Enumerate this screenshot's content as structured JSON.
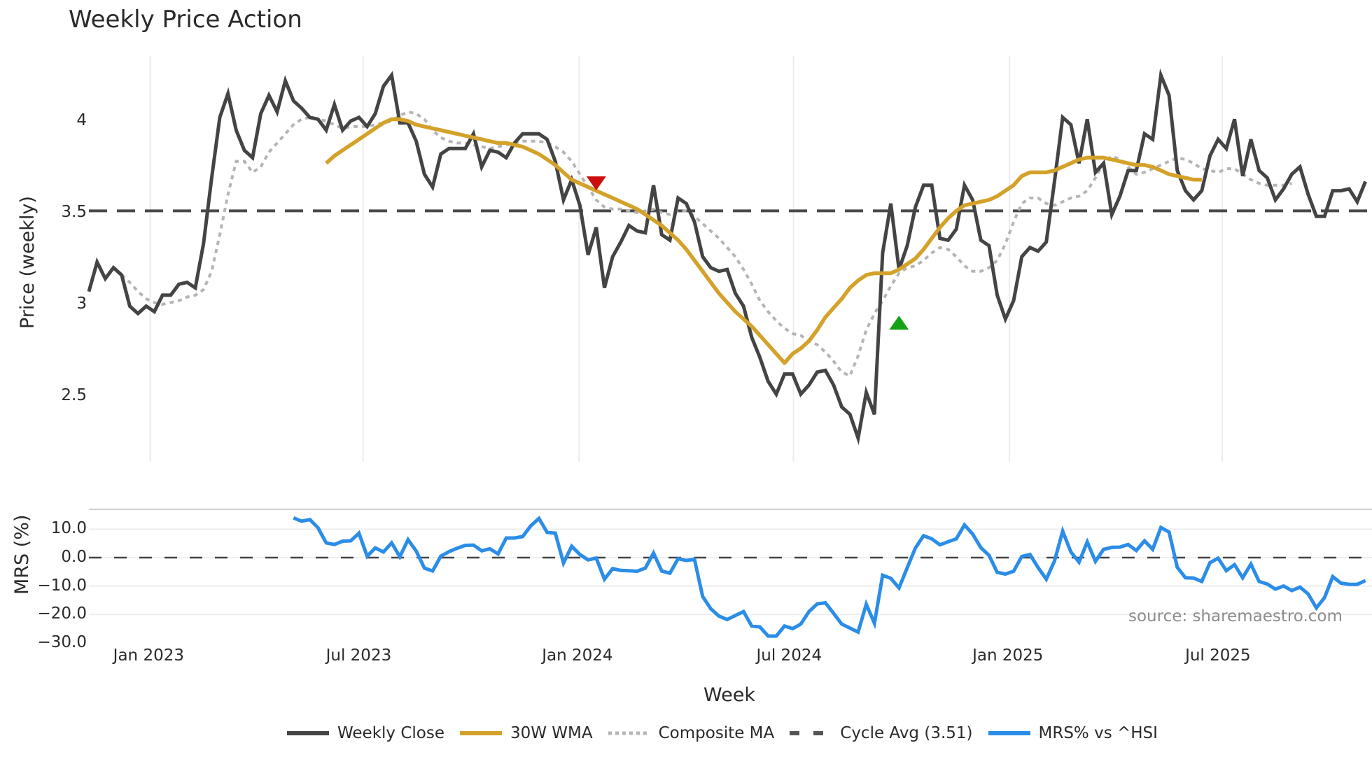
{
  "title": "Weekly Price Action",
  "source": "source: sharemaestro.com",
  "chart_data": [
    {
      "type": "line",
      "title": "Weekly Price Action",
      "xlabel": "Week",
      "ylabel": "Price (weekly)",
      "yticks": [
        "2.5",
        "3",
        "3.5",
        "4"
      ],
      "ylim": [
        2.2,
        4.35
      ],
      "grid": true,
      "x_tick_labels": [
        "Jan 2023",
        "Jul 2023",
        "Jan 2024",
        "Jul 2024",
        "Jan 2025",
        "Jul 2025"
      ],
      "x_start": "2022-11-14",
      "x_unit": "week",
      "series": [
        {
          "name": "Weekly Close",
          "color": "#444444",
          "values": [
            3.07,
            3.23,
            3.14,
            3.2,
            3.16,
            2.99,
            2.95,
            2.99,
            2.96,
            3.05,
            3.05,
            3.11,
            3.12,
            3.09,
            3.33,
            3.69,
            4.02,
            4.15,
            3.95,
            3.84,
            3.8,
            4.04,
            4.14,
            4.05,
            4.22,
            4.11,
            4.07,
            4.02,
            4.01,
            3.95,
            4.09,
            3.95,
            4.0,
            4.02,
            3.97,
            4.04,
            4.19,
            4.25,
            3.99,
            3.99,
            3.89,
            3.71,
            3.64,
            3.82,
            3.85,
            3.85,
            3.85,
            3.93,
            3.75,
            3.84,
            3.83,
            3.8,
            3.88,
            3.93,
            3.93,
            3.93,
            3.9,
            3.78,
            3.57,
            3.68,
            3.54,
            3.27,
            3.42,
            3.09,
            3.26,
            3.34,
            3.43,
            3.4,
            3.39,
            3.65,
            3.38,
            3.35,
            3.58,
            3.55,
            3.45,
            3.26,
            3.2,
            3.18,
            3.19,
            3.06,
            2.99,
            2.82,
            2.71,
            2.58,
            2.51,
            2.62,
            2.62,
            2.51,
            2.56,
            2.63,
            2.64,
            2.56,
            2.44,
            2.4,
            2.27,
            2.52,
            2.4,
            3.28,
            3.55,
            3.19,
            3.32,
            3.53,
            3.65,
            3.65,
            3.36,
            3.35,
            3.41,
            3.65,
            3.57,
            3.35,
            3.32,
            3.05,
            2.92,
            3.02,
            3.26,
            3.31,
            3.29,
            3.34,
            3.67,
            4.02,
            3.98,
            3.77,
            4.01,
            3.72,
            3.77,
            3.49,
            3.59,
            3.73,
            3.73,
            3.93,
            3.9,
            4.25,
            4.14,
            3.73,
            3.62,
            3.57,
            3.62,
            3.81,
            3.9,
            3.85,
            4.01,
            3.7,
            3.9,
            3.73,
            3.69,
            3.57,
            3.63,
            3.71,
            3.75,
            3.6,
            3.48,
            3.48,
            3.62,
            3.62,
            3.63,
            3.56,
            3.67
          ]
        },
        {
          "name": "30W WMA",
          "color": "#d4a22a",
          "start_index": 29,
          "values": [
            3.77,
            3.81,
            3.84,
            3.87,
            3.9,
            3.93,
            3.96,
            3.99,
            4.01,
            4.01,
            4.0,
            3.98,
            3.97,
            3.96,
            3.95,
            3.94,
            3.93,
            3.92,
            3.91,
            3.9,
            3.89,
            3.88,
            3.88,
            3.87,
            3.86,
            3.84,
            3.82,
            3.79,
            3.76,
            3.72,
            3.68,
            3.66,
            3.64,
            3.62,
            3.6,
            3.58,
            3.56,
            3.54,
            3.52,
            3.49,
            3.46,
            3.43,
            3.39,
            3.35,
            3.3,
            3.24,
            3.18,
            3.12,
            3.06,
            3.01,
            2.96,
            2.92,
            2.88,
            2.83,
            2.78,
            2.73,
            2.68,
            2.73,
            2.76,
            2.8,
            2.86,
            2.93,
            2.98,
            3.03,
            3.09,
            3.13,
            3.16,
            3.17,
            3.17,
            3.17,
            3.19,
            3.22,
            3.25,
            3.3,
            3.36,
            3.42,
            3.47,
            3.51,
            3.54,
            3.55,
            3.56,
            3.57,
            3.59,
            3.62,
            3.65,
            3.7,
            3.72,
            3.72,
            3.72,
            3.73,
            3.75,
            3.77,
            3.79,
            3.8,
            3.8,
            3.8,
            3.79,
            3.78,
            3.77,
            3.76,
            3.76,
            3.75,
            3.73,
            3.71,
            3.7,
            3.69,
            3.68,
            3.68
          ]
        },
        {
          "name": "Composite MA",
          "color": "#b5b5b5",
          "start_index": 4,
          "values": [
            3.16,
            3.12,
            3.07,
            3.03,
            3.01,
            3.0,
            3.01,
            3.02,
            3.04,
            3.05,
            3.08,
            3.18,
            3.38,
            3.6,
            3.78,
            3.78,
            3.72,
            3.75,
            3.83,
            3.88,
            3.93,
            3.98,
            4.01,
            4.02,
            4.01,
            4.0,
            3.98,
            3.96,
            3.97,
            3.97,
            3.97,
            3.98,
            3.99,
            4.0,
            4.03,
            4.05,
            4.04,
            4.01,
            3.95,
            3.91,
            3.89,
            3.88,
            3.88,
            3.87,
            3.86,
            3.85,
            3.86,
            3.87,
            3.88,
            3.89,
            3.89,
            3.89,
            3.88,
            3.86,
            3.83,
            3.78,
            3.71,
            3.64,
            3.57,
            3.53,
            3.52,
            3.52,
            3.51,
            3.5,
            3.51,
            3.52,
            3.5,
            3.49,
            3.51,
            3.51,
            3.48,
            3.44,
            3.4,
            3.36,
            3.31,
            3.26,
            3.19,
            3.11,
            3.02,
            2.96,
            2.91,
            2.87,
            2.84,
            2.83,
            2.8,
            2.78,
            2.74,
            2.69,
            2.63,
            2.61,
            2.72,
            2.86,
            2.95,
            3.02,
            3.1,
            3.17,
            3.2,
            3.21,
            3.24,
            3.28,
            3.31,
            3.3,
            3.26,
            3.21,
            3.18,
            3.18,
            3.2,
            3.24,
            3.33,
            3.45,
            3.55,
            3.58,
            3.58,
            3.55,
            3.54,
            3.56,
            3.58,
            3.59,
            3.62,
            3.69,
            3.77,
            3.81,
            3.79,
            3.75,
            3.71,
            3.72,
            3.74,
            3.76,
            3.78,
            3.8,
            3.79,
            3.77,
            3.74,
            3.73,
            3.72,
            3.74,
            3.74,
            3.71,
            3.68,
            3.66,
            3.65,
            3.65,
            3.65,
            3.66
          ]
        },
        {
          "name": "Cycle Avg (3.51)",
          "color": "#444444",
          "value": 3.51
        }
      ],
      "annotations": [
        {
          "type": "sell-marker",
          "shape": "triangle-down",
          "color": "#cc0e0e",
          "index": 62,
          "y": 3.66
        },
        {
          "type": "buy-marker",
          "shape": "triangle-up",
          "color": "#14a014",
          "index": 99,
          "y": 2.9
        }
      ]
    },
    {
      "type": "line",
      "xlabel": "Week",
      "ylabel": "MRS (%)",
      "yticks": [
        "10.0",
        "0.0",
        "−10.0",
        "−20.0",
        "−30.0"
      ],
      "ylim": [
        -30,
        16
      ],
      "grid": true,
      "series": [
        {
          "name": "MRS% vs ^HSI",
          "color": "#2b8de8",
          "start_index": 25,
          "values": [
            14.0,
            12.8,
            13.4,
            10.5,
            5.2,
            4.6,
            5.8,
            5.9,
            8.6,
            0.5,
            3.4,
            2.0,
            5.2,
            0.3,
            6.3,
            2.3,
            -3.7,
            -4.7,
            0.5,
            2.1,
            3.3,
            4.3,
            4.4,
            2.4,
            3.1,
            1.3,
            6.9,
            6.9,
            7.4,
            11.2,
            13.8,
            8.9,
            8.6,
            -1.9,
            4.0,
            1.1,
            -0.8,
            -0.2,
            -7.6,
            -3.9,
            -4.5,
            -4.6,
            -4.8,
            -3.7,
            1.6,
            -4.7,
            -5.5,
            -0.4,
            -1.0,
            -0.6,
            -13.7,
            -18.0,
            -20.6,
            -21.8,
            -20.4,
            -19.0,
            -24.1,
            -24.4,
            -27.6,
            -27.6,
            -24.1,
            -25.0,
            -23.4,
            -19.0,
            -16.3,
            -15.9,
            -19.6,
            -23.4,
            -24.8,
            -26.2,
            -16.4,
            -23.1,
            -6.2,
            -7.3,
            -10.7,
            -3.6,
            3.4,
            7.7,
            6.6,
            4.5,
            5.6,
            6.6,
            11.5,
            8.3,
            3.5,
            0.8,
            -5.2,
            -5.8,
            -4.8,
            0.4,
            1.1,
            -3.5,
            -7.6,
            -1.2,
            9.3,
            2.0,
            -1.6,
            5.5,
            -1.3,
            2.9,
            3.6,
            3.7,
            4.6,
            2.5,
            5.9,
            2.9,
            10.6,
            9.0,
            -3.4,
            -7.1,
            -7.2,
            -8.4,
            -1.8,
            -0.2,
            -4.6,
            -2.5,
            -7.1,
            -2.3,
            -8.4,
            -9.3,
            -11.1,
            -10.0,
            -11.6,
            -10.4,
            -12.8,
            -17.7,
            -14.1,
            -6.7,
            -9.0,
            -9.4,
            -9.4,
            -8.1
          ]
        },
        {
          "name": "Zero line",
          "color": "#444444",
          "value": 0
        }
      ]
    }
  ],
  "axes": {
    "top_ylabel": "Price (weekly)",
    "bottom_ylabel": "MRS (%)",
    "xlabel": "Week",
    "top_yticks": [
      {
        "label": "4",
        "value": 4
      },
      {
        "label": "3.5",
        "value": 3.5
      },
      {
        "label": "3",
        "value": 3
      },
      {
        "label": "2.5",
        "value": 2.5
      }
    ],
    "bottom_yticks": [
      {
        "label": "10.0",
        "value": 10
      },
      {
        "label": "0.0",
        "value": 0
      },
      {
        "label": "−10.0",
        "value": -10
      },
      {
        "label": "−20.0",
        "value": -20
      },
      {
        "label": "−30.0",
        "value": -30
      }
    ],
    "xticks": [
      {
        "label": "Jan 2023",
        "index": 7.5
      },
      {
        "label": "Jul 2023",
        "index": 33.5
      },
      {
        "label": "Jan 2024",
        "index": 59.9
      },
      {
        "label": "Jul 2024",
        "index": 86.1
      },
      {
        "label": "Jan 2025",
        "index": 112.5
      },
      {
        "label": "Jul 2025",
        "index": 138.5
      }
    ]
  },
  "legend": [
    {
      "label": "Weekly Close",
      "color": "#444444",
      "style": "solid"
    },
    {
      "label": "30W WMA",
      "color": "#d4a22a",
      "style": "solid"
    },
    {
      "label": "Composite MA",
      "color": "#b5b5b5",
      "style": "dotted"
    },
    {
      "label": "Cycle Avg (3.51)",
      "color": "#555555",
      "style": "dashed"
    },
    {
      "label": "MRS% vs ^HSI",
      "color": "#2b8de8",
      "style": "solid"
    }
  ]
}
